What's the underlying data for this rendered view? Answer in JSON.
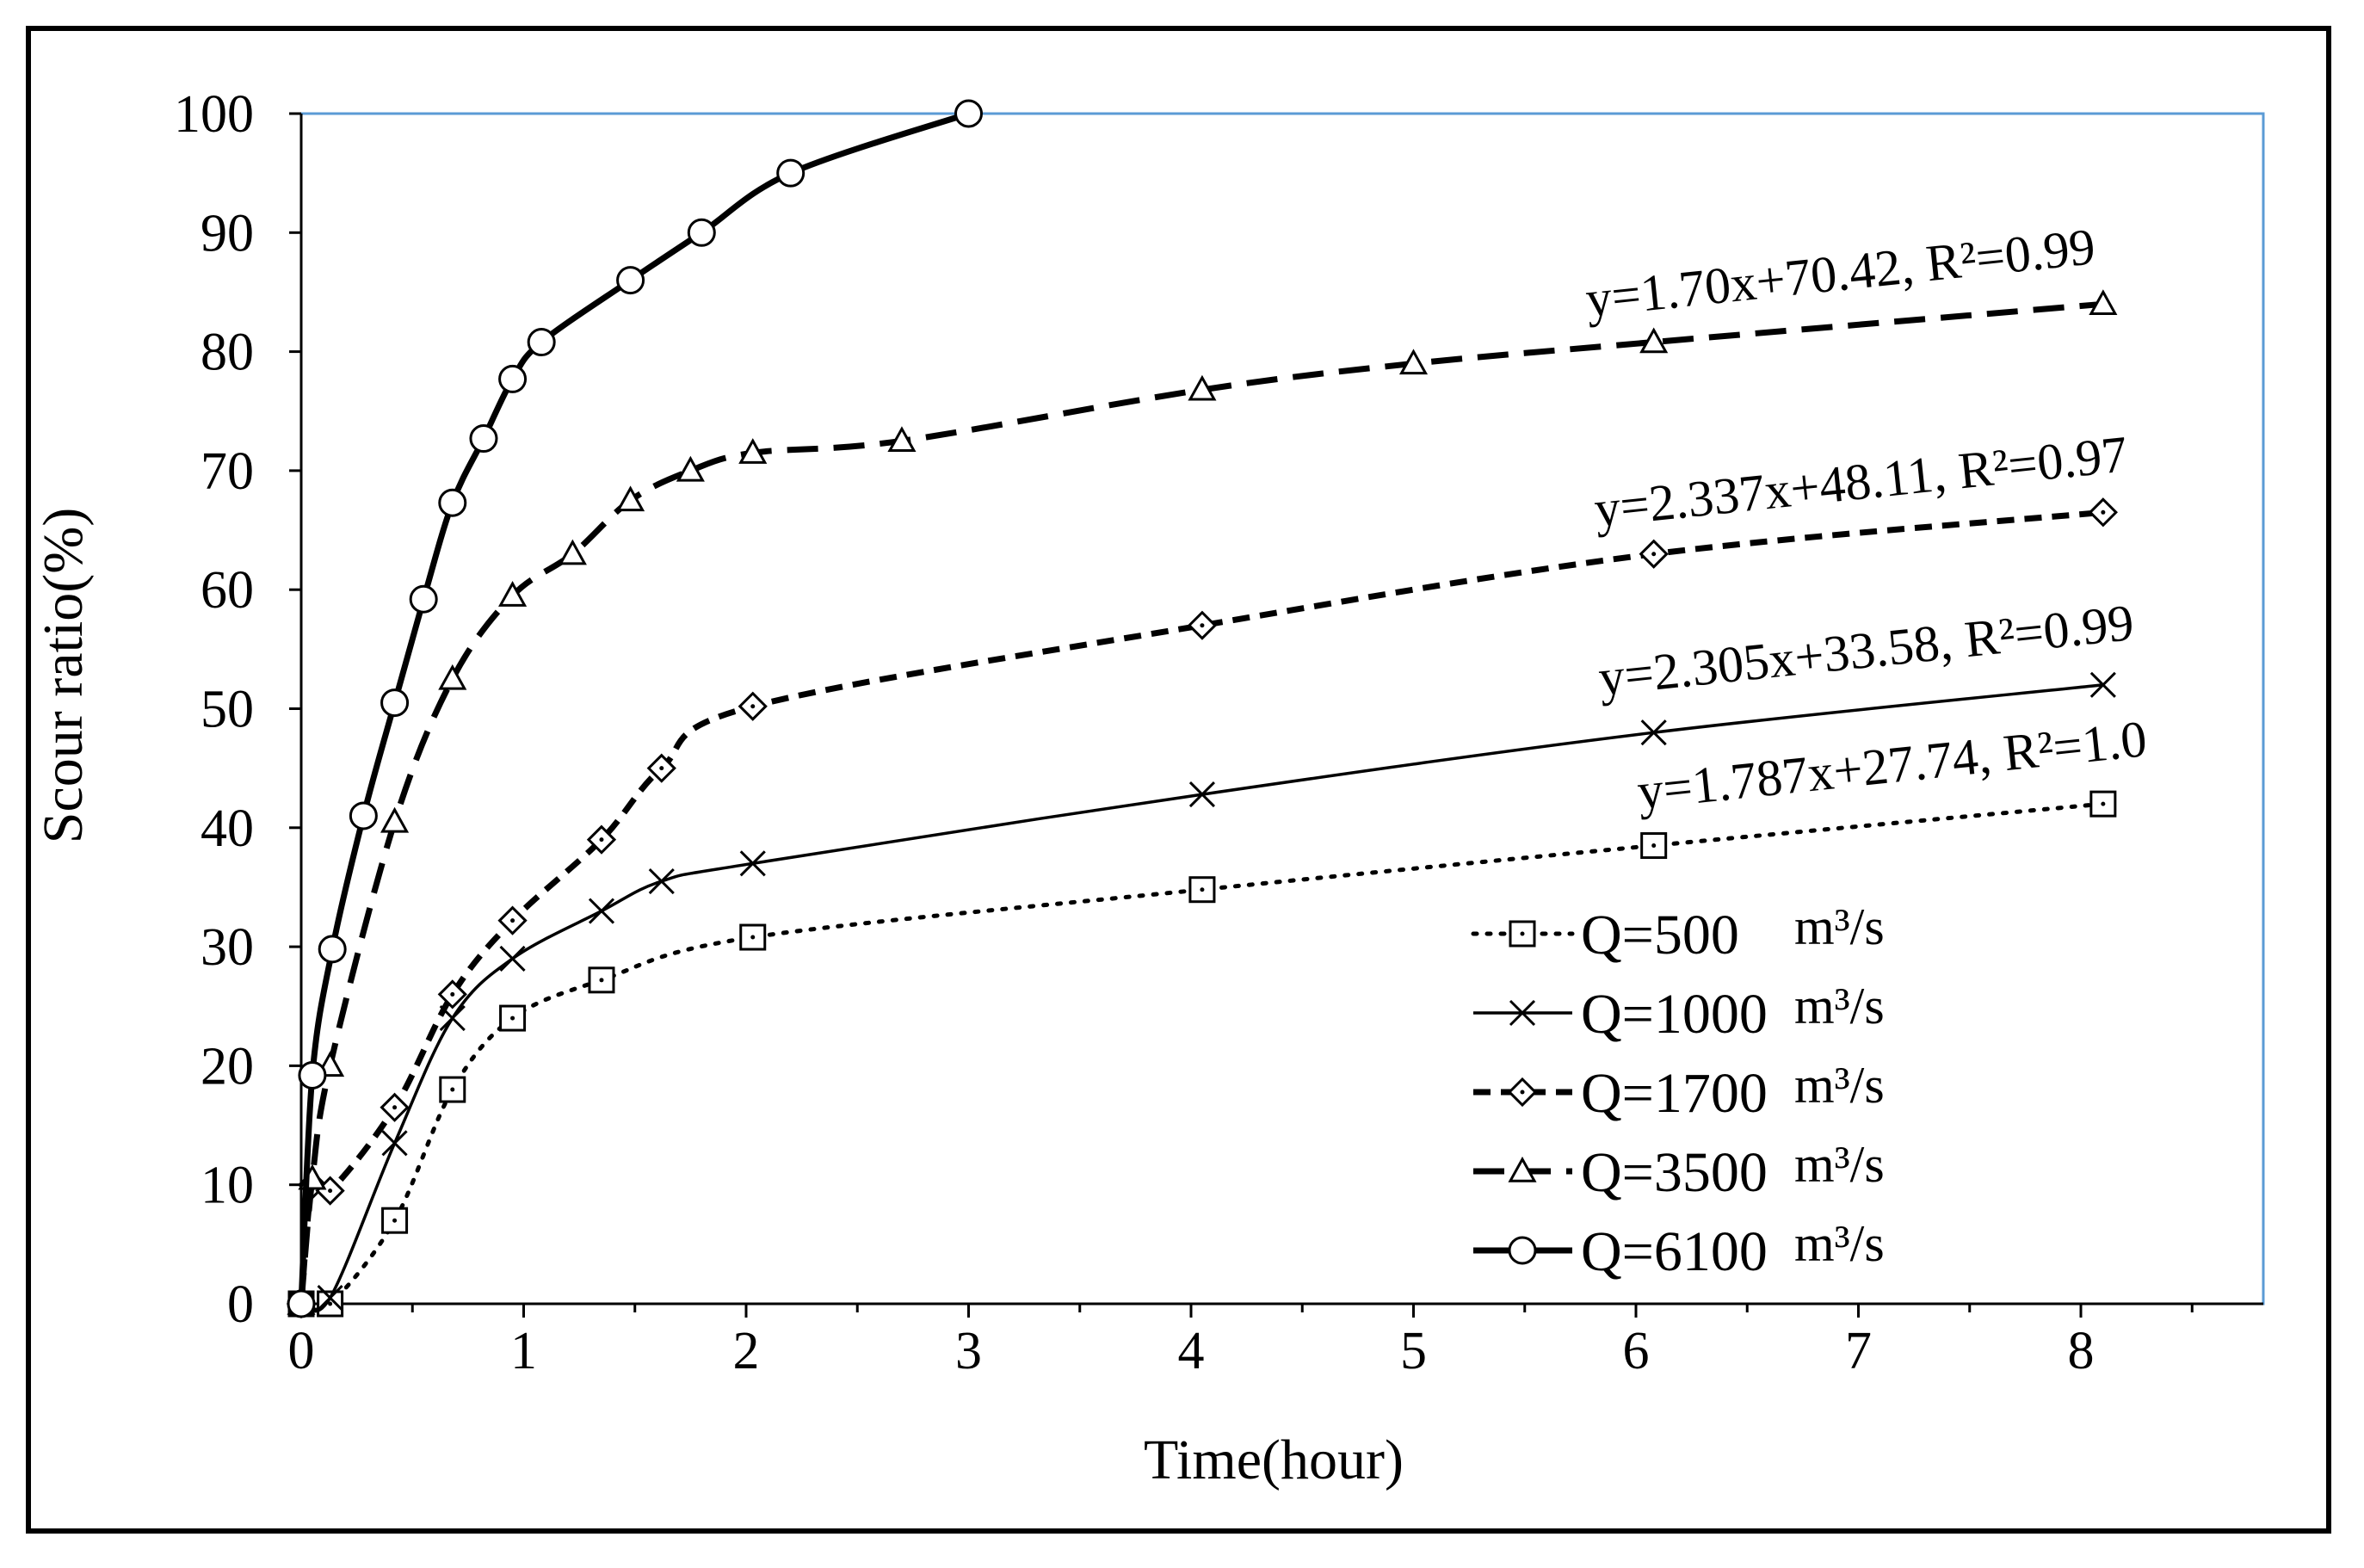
{
  "chart_data": {
    "type": "line",
    "xlabel": "Time(hour)",
    "ylabel": "Scour ratio(%)",
    "xlim": [
      0,
      8.5
    ],
    "ylim": [
      0,
      100
    ],
    "xticks": [
      0,
      1,
      2,
      3,
      4,
      5,
      6,
      7,
      8
    ],
    "yticks": [
      0,
      10,
      20,
      30,
      40,
      50,
      60,
      70,
      80,
      90,
      100
    ],
    "series": [
      {
        "name": "Q=500",
        "unit": "m³/s",
        "style": "dotted",
        "marker": "square",
        "x": [
          0,
          0.13,
          0.42,
          0.68,
          0.95,
          1.35,
          2.03,
          4.05,
          6.08,
          8.1
        ],
        "y": [
          0,
          0,
          7,
          18,
          24,
          27.2,
          30.8,
          34.8,
          38.5,
          42
        ]
      },
      {
        "name": "Q=1000",
        "unit": "m³/s",
        "style": "solid-thin",
        "marker": "x",
        "x": [
          0,
          0.13,
          0.42,
          0.68,
          0.95,
          1.35,
          1.62,
          2.03,
          4.05,
          6.08,
          8.1
        ],
        "y": [
          0,
          0.5,
          13.5,
          24,
          29,
          33,
          35.5,
          37,
          42.8,
          48,
          52
        ]
      },
      {
        "name": "Q=1700",
        "unit": "m³/s",
        "style": "short-dash",
        "marker": "diamond",
        "x": [
          0,
          0.05,
          0.13,
          0.42,
          0.68,
          0.95,
          1.35,
          1.62,
          2.03,
          4.05,
          6.08,
          8.1
        ],
        "y": [
          0,
          10,
          9.5,
          16.5,
          26,
          32.2,
          39,
          45,
          50.2,
          57,
          63,
          66.5
        ]
      },
      {
        "name": "Q=3500",
        "unit": "m³/s",
        "style": "long-dash",
        "marker": "triangle",
        "x": [
          0,
          0.05,
          0.13,
          0.42,
          0.68,
          0.95,
          1.22,
          1.48,
          1.75,
          2.03,
          2.7,
          4.05,
          5.0,
          6.08,
          8.1
        ],
        "y": [
          0,
          10.5,
          20,
          40.5,
          52.5,
          59.5,
          63,
          67.5,
          70,
          71.5,
          72.5,
          76.8,
          79,
          80.8,
          84
        ]
      },
      {
        "name": "Q=6100",
        "unit": "m³/s",
        "style": "solid-thick",
        "marker": "circle",
        "x": [
          0,
          0.05,
          0.14,
          0.28,
          0.42,
          0.55,
          0.68,
          0.82,
          0.95,
          1.08,
          1.48,
          1.8,
          2.2,
          3.0
        ],
        "y": [
          0,
          19.2,
          29.8,
          41,
          50.5,
          59.2,
          67.3,
          72.7,
          77.7,
          80.8,
          86,
          90,
          95,
          100
        ]
      }
    ],
    "annotations": [
      {
        "series": "Q=3500",
        "text": "y=1.70x+70.42, R²=0.99"
      },
      {
        "series": "Q=1700",
        "text": "y=2.337x+48.11, R²=0.97"
      },
      {
        "series": "Q=1000",
        "text": "y=2.305x+33.58, R²=0.99"
      },
      {
        "series": "Q=500",
        "text": "y=1.787x+27.74, R²=1.0"
      }
    ]
  },
  "colors": {
    "plot_border": "#5b9bd5",
    "line": "#000000"
  }
}
